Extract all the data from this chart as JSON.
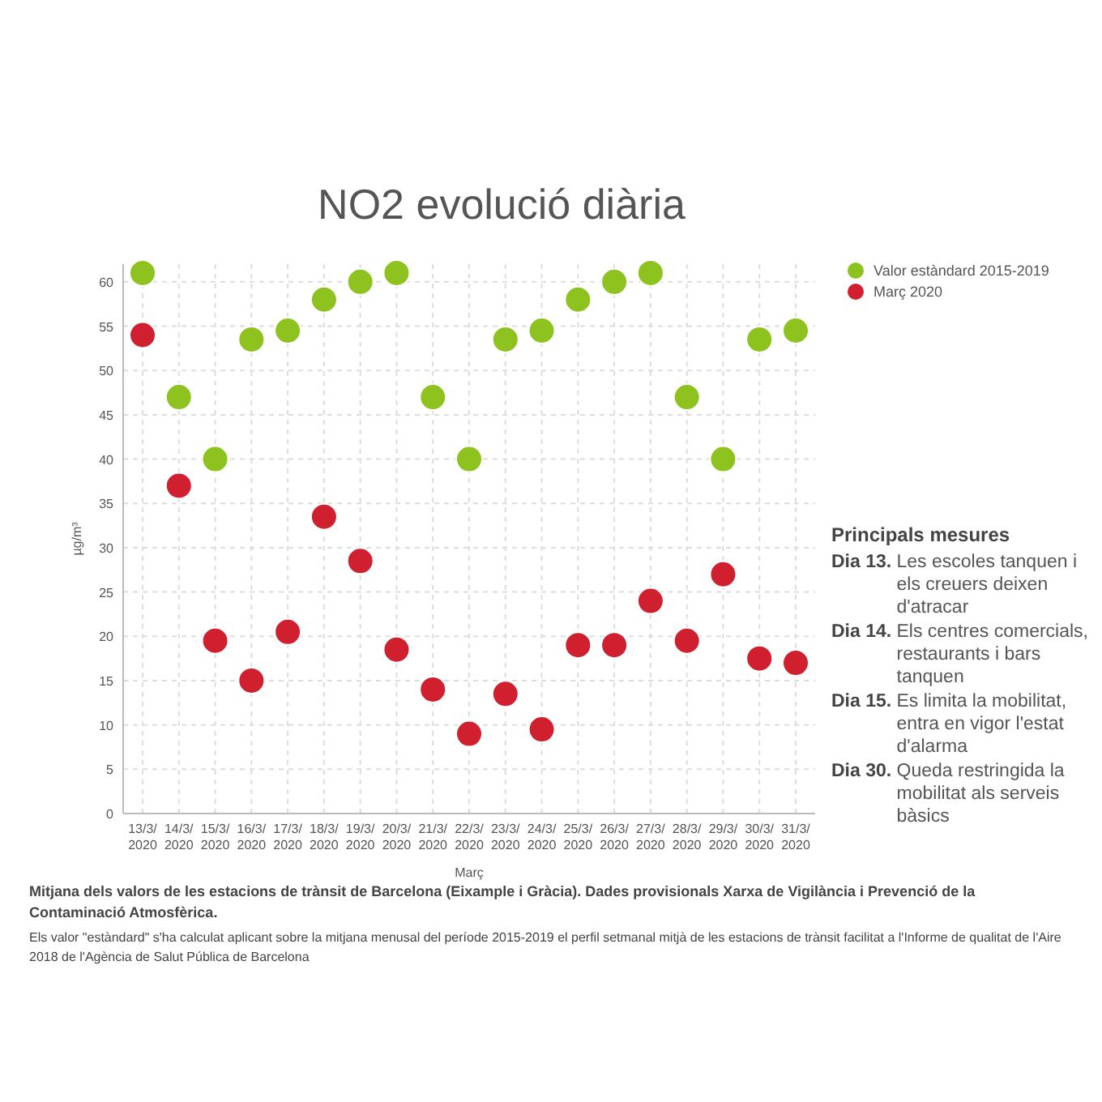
{
  "chart_data": {
    "type": "scatter",
    "title": "NO2 evolució diària",
    "xlabel": "Març",
    "ylabel": "µg/m³",
    "categories": [
      "13/3/ 2020",
      "14/3/ 2020",
      "15/3/ 2020",
      "16/3/ 2020",
      "17/3/ 2020",
      "18/3/ 2020",
      "19/3/ 2020",
      "20/3/ 2020",
      "21/3/ 2020",
      "22/3/ 2020",
      "23/3/ 2020",
      "24/3/ 2020",
      "25/3/ 2020",
      "26/3/ 2020",
      "27/3/ 2020",
      "28/3/ 2020",
      "29/3/ 2020",
      "30/3/ 2020",
      "31/3/ 2020"
    ],
    "series": [
      {
        "name": "Valor estàndard 2015-2019",
        "color": "#8dc21f",
        "values": [
          61,
          47,
          40,
          53.5,
          54.5,
          58,
          60,
          61,
          47,
          40,
          53.5,
          54.5,
          58,
          60,
          61,
          47,
          40,
          53.5,
          54.5
        ]
      },
      {
        "name": "Març 2020",
        "color": "#d0202f",
        "values": [
          54,
          37,
          19.5,
          15,
          20.5,
          33.5,
          28.5,
          18.5,
          14,
          9,
          13.5,
          9.5,
          19,
          19,
          24,
          19.5,
          27,
          17.5,
          17
        ]
      }
    ],
    "ylim": [
      0,
      62
    ],
    "yticks": [
      0,
      5,
      10,
      15,
      20,
      25,
      30,
      35,
      40,
      45,
      50,
      55,
      60
    ],
    "grid": true,
    "legend": "right",
    "marker": "circle",
    "annotations": [
      "Principals mesures",
      "Dia 13. Les escoles tanquen i els creuers deixen d'atracar",
      "Dia 14. Els centres comercials, restaurants i bars tanquen",
      "Dia 15. Es limita la mobilitat, entra en vigor l'estat d'alarma",
      "Dia 30. Queda restringida la mobilitat als serveis bàsics",
      "Mitjana dels valors de les estacions de trànsit de Barcelona (Eixample i Gràcia). Dades provisionals Xarxa de Vigilància i Prevenció de la Contaminació Atmosfèrica.",
      "Els valor \"estàndard\" s'ha calculat aplicant sobre la mitjana menusal del període 2015-2019 el perfil setmanal mitjà de les estacions de trànsit facilitat a l'Informe de qualitat de l'Aire 2018 de l'Agència de Salut Pública de Barcelona"
    ]
  }
}
